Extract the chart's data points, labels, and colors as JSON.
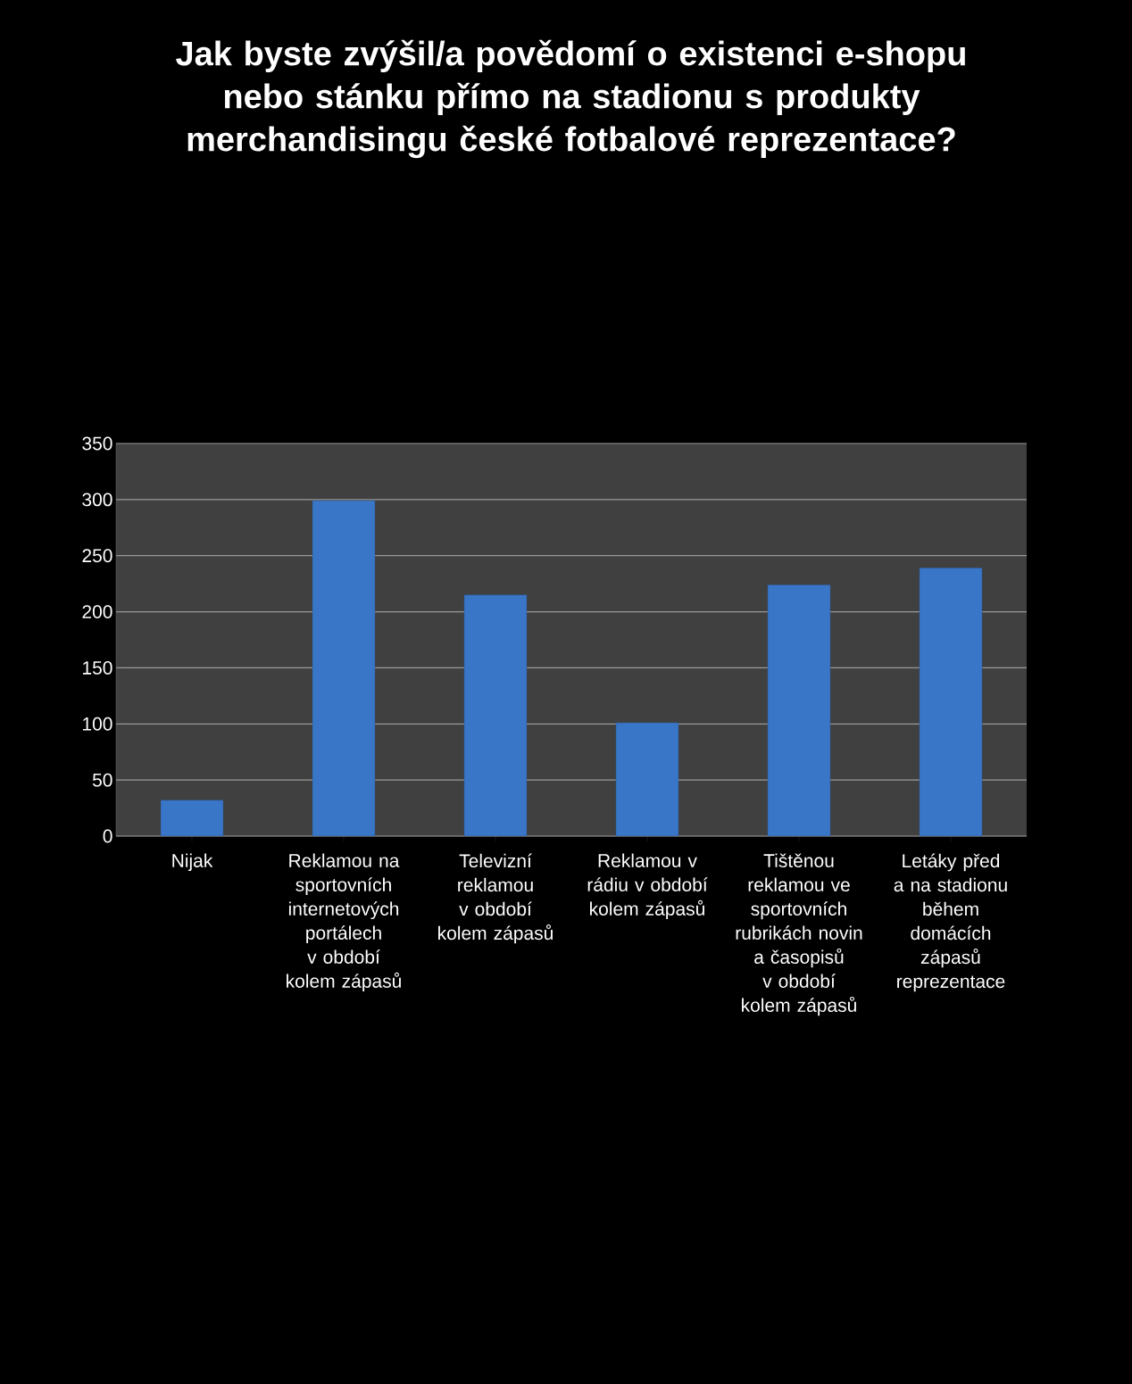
{
  "chart_data": {
    "type": "bar",
    "title": "Jak byste zvýšil/a povědomí o existenci e-shopu nebo stánku přímo na stadionu s produkty merchandisingu české fotbalové reprezentace?",
    "categories": [
      "Nijak",
      "Reklamou na sportovních internetových portálech v období kolem zápasů",
      "Televizní reklamou v období kolem zápasů",
      "Reklamou v rádiu v období kolem zápasů",
      "Tištěnou reklamou ve sportovních rubrikách novin a časopisů v období kolem zápasů",
      "Letáky před a na stadionu během domácích zápasů reprezentace"
    ],
    "values": [
      32,
      299,
      215,
      101,
      224,
      239
    ],
    "color": "#3a76c8",
    "ylim": [
      0,
      350
    ],
    "yticks": [
      0,
      50,
      100,
      150,
      200,
      250,
      300,
      350
    ],
    "grid": "y"
  }
}
